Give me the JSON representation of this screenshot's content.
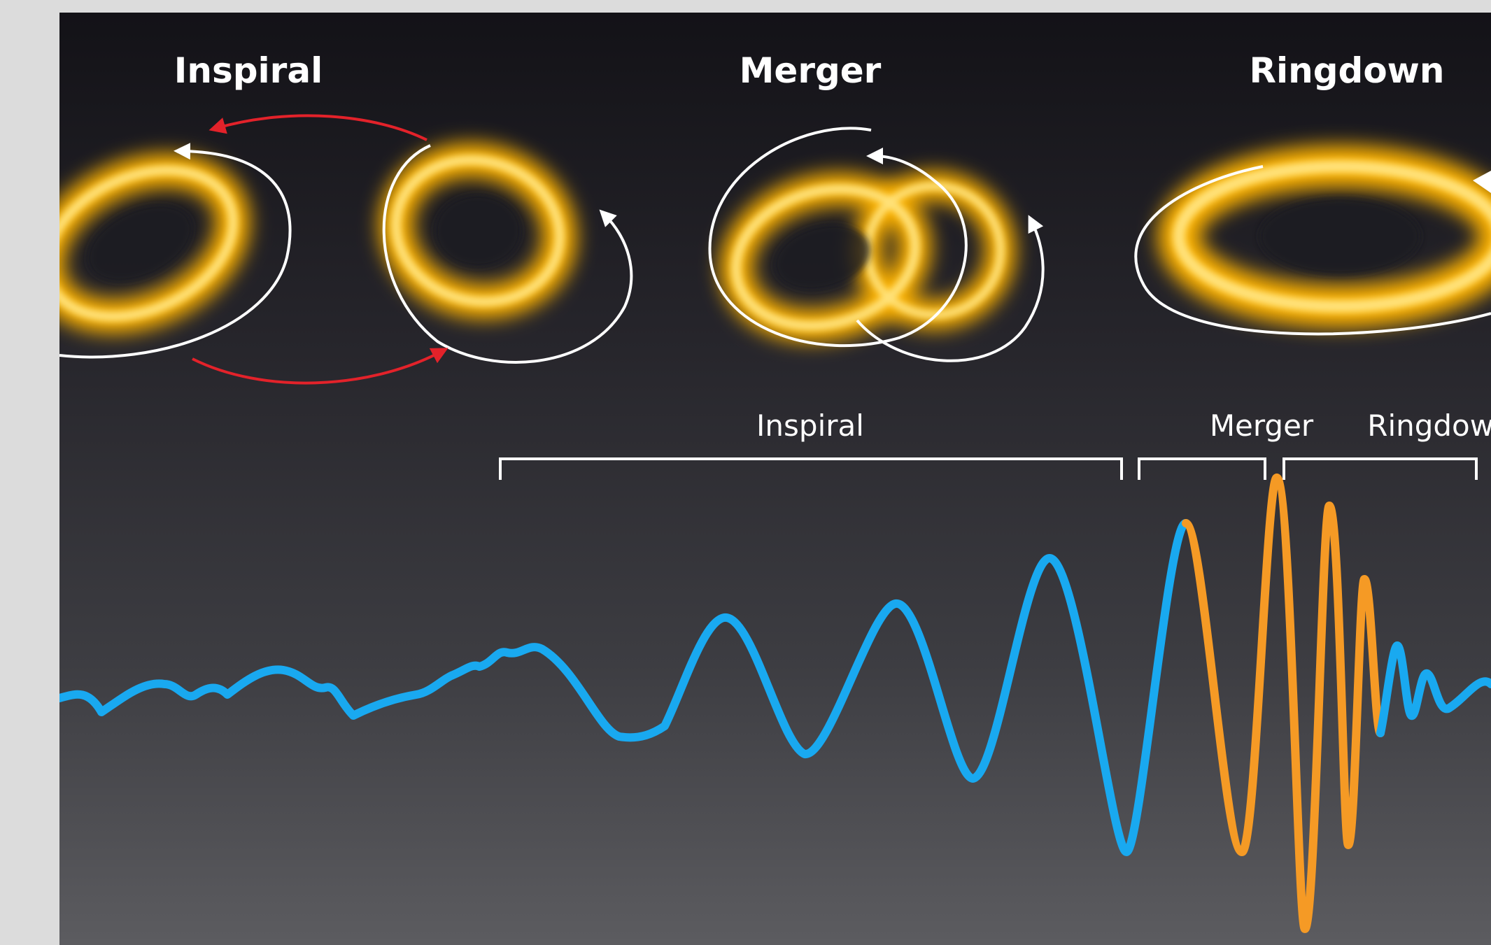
{
  "stage_titles": {
    "inspiral": "Inspiral",
    "merger": "Merger",
    "ringdown": "Ringdown"
  },
  "phase_labels": {
    "inspiral": "Inspiral",
    "merger": "Merger",
    "ringdown": "Ringdown"
  },
  "colors": {
    "background_top": "#131217",
    "background_bottom": "#5c5c60",
    "inspiral_wave": "#19a9f0",
    "merger_wave": "#f59a25",
    "accretion_glow": "#ffb400",
    "orbit_arrow": "#ffffff",
    "motion_arrow": "#e3222a"
  },
  "icons": {
    "black_hole": "glowing-ring-icon",
    "orbit": "curved-arrow-icon"
  }
}
